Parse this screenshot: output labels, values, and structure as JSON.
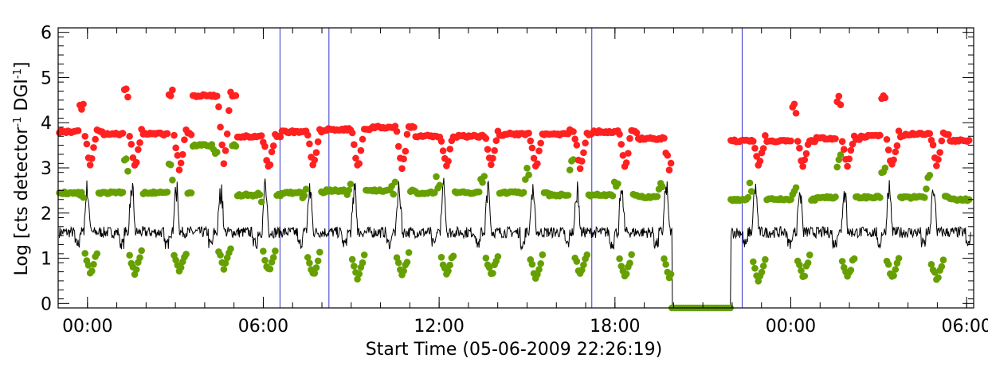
{
  "chart_data": {
    "type": "scatter",
    "xlabel": "Start Time (05-06-2009 22:26:19)",
    "ylabel_parts": [
      "Log [cts detector",
      "-1",
      " DGI",
      "-1",
      "]"
    ],
    "x_unit": "hours since start time",
    "xlim": [
      0.56,
      31.8
    ],
    "ylim": [
      -0.1,
      6.1
    ],
    "x_ticks": [
      {
        "x": 1.56,
        "label": "00:00"
      },
      {
        "x": 7.56,
        "label": "06:00"
      },
      {
        "x": 13.56,
        "label": "12:00"
      },
      {
        "x": 19.56,
        "label": "18:00"
      },
      {
        "x": 25.56,
        "label": "00:00"
      },
      {
        "x": 31.56,
        "label": "06:00"
      }
    ],
    "y_ticks": [
      0,
      1,
      2,
      3,
      4,
      5,
      6
    ],
    "vertical_lines_x": [
      8.13,
      9.8,
      18.77,
      23.9
    ],
    "vertical_line_color": "#3333cc",
    "gap": {
      "start": 21.5,
      "end": 23.5,
      "value": -0.1
    },
    "orbit": {
      "start": 0.6,
      "end": 31.7,
      "period": 1.52,
      "count": 21
    },
    "series": [
      {
        "key": "red",
        "color": "#ff2020",
        "marker": "dot",
        "baseline": [
          3.8,
          3.75,
          3.75,
          4.6,
          3.7,
          3.8,
          3.85,
          3.9,
          3.7,
          3.7,
          3.75,
          3.75,
          3.8,
          3.65,
          3.7,
          3.6,
          3.6,
          3.65,
          3.7,
          3.75,
          3.6
        ],
        "dip": 2.9,
        "peak": [
          4.55,
          4.75,
          4.8,
          0,
          0,
          0,
          0,
          0,
          0,
          0,
          0,
          4.1,
          0,
          0,
          0,
          0,
          4.5,
          4.6,
          4.65,
          0,
          0
        ]
      },
      {
        "key": "green",
        "color": "#66a000",
        "marker": "dot",
        "baseline": [
          2.45,
          2.45,
          2.45,
          3.5,
          2.4,
          2.45,
          2.5,
          2.5,
          2.45,
          2.45,
          2.45,
          2.4,
          2.4,
          2.35,
          2.4,
          2.3,
          2.3,
          2.35,
          2.35,
          2.35,
          2.3
        ],
        "low": [
          0.6,
          0.6,
          0.6,
          0.7,
          0.65,
          0.55,
          0.5,
          0.55,
          0.55,
          0.55,
          0.5,
          0.55,
          0.5,
          0.5,
          0.5,
          0.45,
          0.5,
          0.5,
          0.5,
          0.45,
          0.5
        ],
        "spike": [
          2.7,
          3.3,
          3.1,
          3.6,
          2.6,
          2.7,
          2.7,
          2.8,
          2.9,
          3.0,
          3.1,
          3.2,
          2.9,
          2.8,
          2.6,
          2.7,
          2.6,
          3.3,
          3.2,
          2.9,
          2.5
        ]
      },
      {
        "key": "black",
        "color": "#000000",
        "marker": "line",
        "baseline": 1.45,
        "spike": 2.6
      }
    ]
  }
}
